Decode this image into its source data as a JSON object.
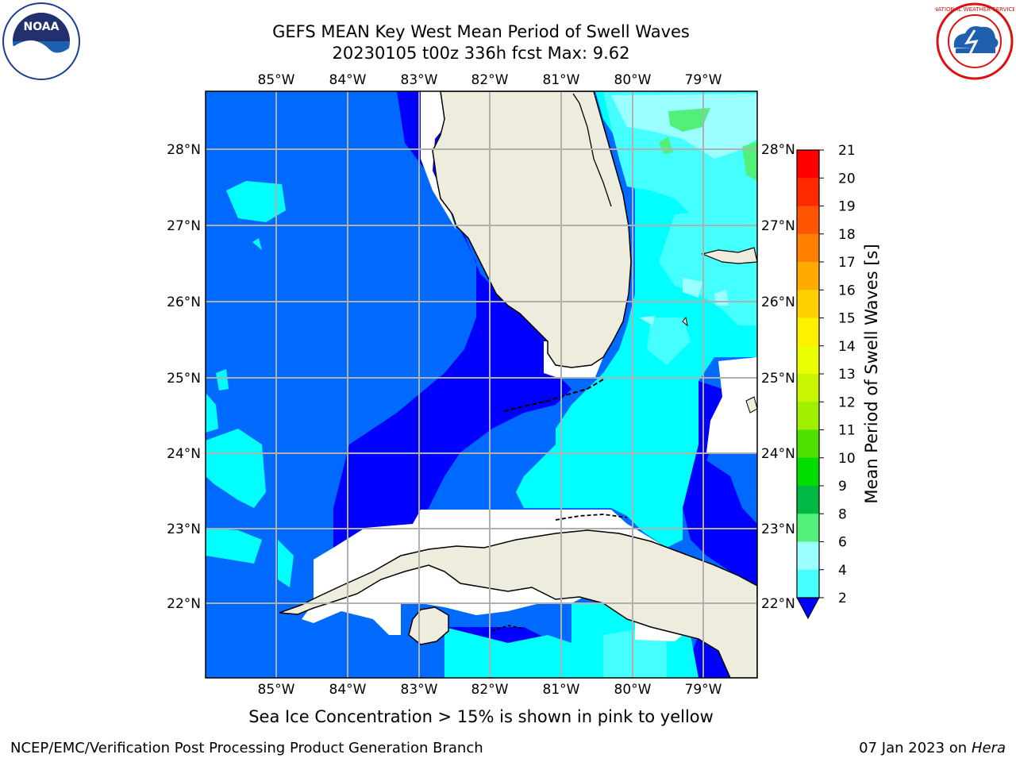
{
  "header": {
    "title_line1": "GEFS MEAN Key West Mean Period of Swell Waves",
    "title_line2": "20230105 t00z 336h fcst   Max: 9.62"
  },
  "map": {
    "lon_labels": [
      "85°W",
      "84°W",
      "83°W",
      "82°W",
      "81°W",
      "80°W",
      "79°W"
    ],
    "lat_labels": [
      "28°N",
      "27°N",
      "26°N",
      "25°N",
      "24°N",
      "23°N",
      "22°N"
    ],
    "land_color": "#eeecdc",
    "grid_color": "#b0b0b0",
    "colors": {
      "c2": "#006aff",
      "c4": "#00ffff",
      "c6": "#45ffff",
      "c8": "#9cffff",
      "c9": "#52f07a",
      "deep": "#0000ff",
      "nodata": "#ffffff"
    }
  },
  "colorbar": {
    "label": "Mean Period of Swell Waves [s]",
    "ticks": [
      "21",
      "20",
      "19",
      "18",
      "17",
      "16",
      "15",
      "14",
      "13",
      "12",
      "11",
      "10",
      "9",
      "8",
      "6",
      "4",
      "2"
    ],
    "colors": [
      "#ff0000",
      "#ff2a00",
      "#ff5500",
      "#ff8000",
      "#ffaa00",
      "#ffd000",
      "#fff000",
      "#eaff00",
      "#c8f500",
      "#a0ee00",
      "#50e000",
      "#00dd00",
      "#00b844",
      "#52f07a",
      "#9cffff",
      "#45ffff",
      "#00ffff",
      "#006aff"
    ]
  },
  "caption": "Sea Ice Concentration > 15% is shown in pink to yellow",
  "footer": {
    "left": "NCEP/EMC/Verification Post Processing Product Generation Branch",
    "right_date": "07 Jan 2023 on ",
    "right_host": "Hera"
  },
  "logos": {
    "noaa_text": "NOAA",
    "nws_text": "NATIONAL WEATHER SERVICE"
  }
}
